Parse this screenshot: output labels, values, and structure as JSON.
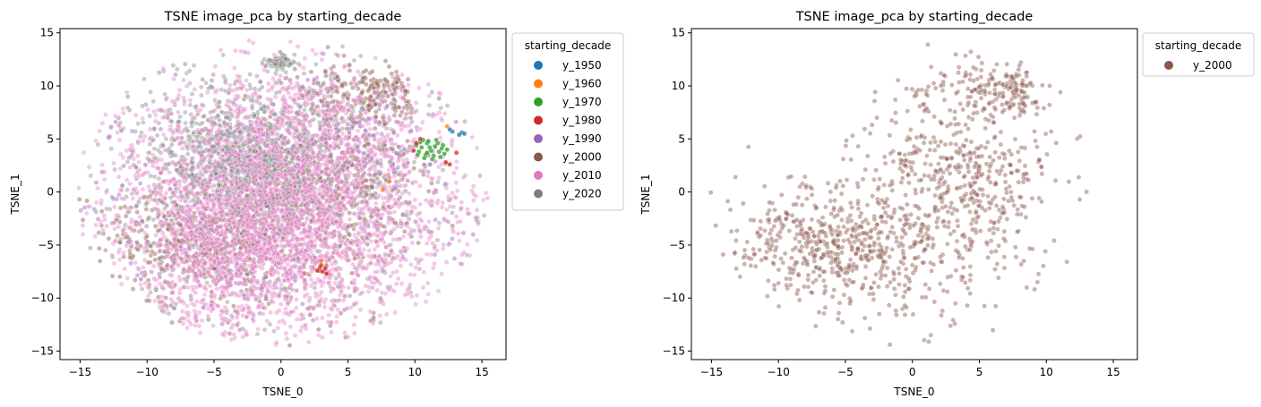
{
  "chart_data": [
    {
      "type": "scatter",
      "title": "TSNE image_pca by starting_decade",
      "xlabel": "TSNE_0",
      "ylabel": "TSNE_1",
      "xlim": [
        -16.5,
        16.8
      ],
      "ylim": [
        -15.8,
        15.4
      ],
      "xticks": [
        -15,
        -10,
        -5,
        0,
        5,
        10,
        15
      ],
      "yticks": [
        -15,
        -10,
        -5,
        0,
        5,
        10,
        15
      ],
      "xtick_labels": [
        "−15",
        "−10",
        "−5",
        "0",
        "5",
        "10",
        "15"
      ],
      "ytick_labels": [
        "−15",
        "−10",
        "−5",
        "0",
        "5",
        "10",
        "15"
      ],
      "grid": false,
      "legend": {
        "title": "starting_decade",
        "placement": "outside-right-top",
        "entries": [
          "y_1950",
          "y_1960",
          "y_1970",
          "y_1980",
          "y_1990",
          "y_2000",
          "y_2010",
          "y_2020"
        ]
      },
      "series": [
        {
          "name": "y_1950",
          "color": "#1f77b4",
          "approx_count": 5,
          "points": [
            [
              13.5,
              5.6
            ],
            [
              12.8,
              5.7
            ],
            [
              13.3,
              5.4
            ],
            [
              13.7,
              5.5
            ],
            [
              12.6,
              5.9
            ]
          ]
        },
        {
          "name": "y_1960",
          "color": "#ff7f0e",
          "approx_count": 4,
          "points": [
            [
              8.1,
              1.0
            ],
            [
              12.4,
              6.2
            ],
            [
              7.6,
              0.2
            ],
            [
              3.0,
              -6.5
            ]
          ]
        },
        {
          "name": "y_1970",
          "color": "#2ca02c",
          "approx_count": 24,
          "points": [
            [
              10.5,
              4.2
            ],
            [
              10.9,
              4.6
            ],
            [
              11.2,
              3.9
            ],
            [
              11.5,
              4.3
            ],
            [
              10.8,
              3.5
            ],
            [
              11.8,
              3.8
            ],
            [
              12.0,
              4.1
            ],
            [
              10.3,
              3.8
            ],
            [
              11.0,
              4.8
            ],
            [
              11.4,
              3.4
            ],
            [
              10.6,
              4.9
            ],
            [
              12.2,
              3.6
            ],
            [
              11.7,
              4.6
            ],
            [
              10.1,
              4.4
            ],
            [
              11.3,
              3.1
            ],
            [
              10.7,
              3.2
            ],
            [
              12.4,
              4.0
            ],
            [
              11.9,
              3.3
            ],
            [
              10.4,
              4.7
            ],
            [
              11.6,
              4.9
            ],
            [
              11.1,
              4.2
            ],
            [
              10.9,
              3.7
            ],
            [
              12.1,
              4.4
            ],
            [
              10.2,
              3.5
            ]
          ]
        },
        {
          "name": "y_1980",
          "color": "#d62728",
          "approx_count": 12,
          "points": [
            [
              2.9,
              -7.1
            ],
            [
              3.1,
              -7.5
            ],
            [
              3.3,
              -7.2
            ],
            [
              2.7,
              -7.4
            ],
            [
              3.0,
              -6.9
            ],
            [
              3.4,
              -7.7
            ],
            [
              10.1,
              4.6
            ],
            [
              12.6,
              2.6
            ],
            [
              13.1,
              3.7
            ],
            [
              9.9,
              3.9
            ],
            [
              12.3,
              2.8
            ],
            [
              10.4,
              5.0
            ]
          ]
        },
        {
          "name": "y_1990",
          "color": "#9467bd",
          "approx_count": 600
        },
        {
          "name": "y_2000",
          "color": "#8c564b",
          "approx_count": 1300
        },
        {
          "name": "y_2010",
          "color": "#e377c2",
          "approx_count": 3200
        },
        {
          "name": "y_2020",
          "color": "#7f7f7f",
          "approx_count": 1700
        }
      ]
    },
    {
      "type": "scatter",
      "title": "TSNE image_pca by starting_decade",
      "xlabel": "TSNE_0",
      "ylabel": "TSNE_1",
      "xlim": [
        -16.5,
        16.8
      ],
      "ylim": [
        -15.8,
        15.4
      ],
      "xticks": [
        -15,
        -10,
        -5,
        0,
        5,
        10,
        15
      ],
      "yticks": [
        -15,
        -10,
        -5,
        0,
        5,
        10,
        15
      ],
      "xtick_labels": [
        "−15",
        "−10",
        "−5",
        "0",
        "5",
        "10",
        "15"
      ],
      "ytick_labels": [
        "−15",
        "−10",
        "−5",
        "0",
        "5",
        "10",
        "15"
      ],
      "grid": false,
      "legend": {
        "title": "starting_decade",
        "placement": "outside-right-top",
        "entries": [
          "y_2000"
        ]
      },
      "series": [
        {
          "name": "y_2000",
          "color": "#8c564b",
          "approx_count": 1300
        }
      ]
    }
  ]
}
